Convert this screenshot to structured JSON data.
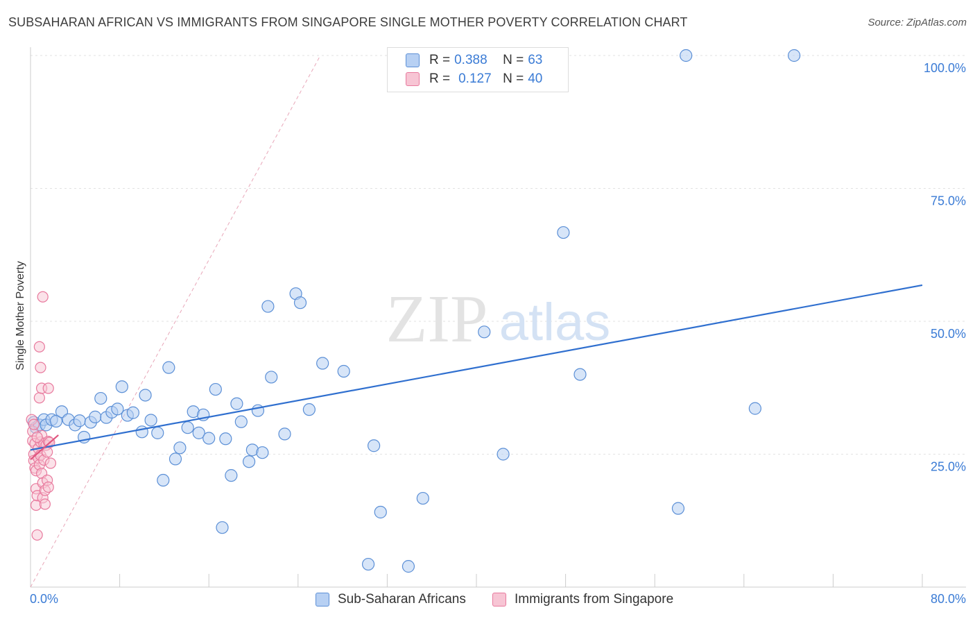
{
  "header": {
    "title": "SUBSAHARAN AFRICAN VS IMMIGRANTS FROM SINGAPORE SINGLE MOTHER POVERTY CORRELATION CHART",
    "source": "Source: ZipAtlas.com"
  },
  "watermark": {
    "zip": "ZIP",
    "atlas": "atlas"
  },
  "legend": {
    "r_label": "R =",
    "n_label": "N =",
    "series": [
      {
        "name": "Sub-Saharan Africans",
        "r": "0.388",
        "n": "63",
        "color": "#5b8fd6",
        "fill": "#b7d0f3"
      },
      {
        "name": "Immigrants from Singapore",
        "r": "0.127",
        "n": "40",
        "color": "#e8799d",
        "fill": "#f7c5d4"
      }
    ]
  },
  "chart_data": {
    "type": "scatter",
    "title": "SUBSAHARAN AFRICAN VS IMMIGRANTS FROM SINGAPORE SINGLE MOTHER POVERTY CORRELATION CHART",
    "xlabel": "",
    "ylabel": "Single Mother Poverty",
    "xlim": [
      0,
      80
    ],
    "ylim": [
      0,
      102
    ],
    "x_tick_labels": [
      "0.0%",
      "80.0%"
    ],
    "y_ticks": [
      25,
      50,
      75,
      100
    ],
    "y_tick_labels": [
      "25.0%",
      "50.0%",
      "75.0%",
      "100.0%"
    ],
    "grid": true,
    "series": [
      {
        "name": "Sub-Saharan Africans",
        "color": "#5b8fd6",
        "fill": "#b7d0f3",
        "points": [
          [
            0.3,
            31.0
          ],
          [
            0.5,
            30.0
          ],
          [
            0.8,
            30.5
          ],
          [
            1.2,
            31.5
          ],
          [
            1.4,
            30.5
          ],
          [
            1.9,
            31.5
          ],
          [
            2.3,
            31.2
          ],
          [
            2.8,
            33.0
          ],
          [
            3.4,
            31.5
          ],
          [
            4.0,
            30.5
          ],
          [
            4.4,
            31.3
          ],
          [
            4.8,
            28.2
          ],
          [
            5.4,
            31.0
          ],
          [
            5.8,
            32.0
          ],
          [
            6.3,
            35.5
          ],
          [
            6.8,
            31.9
          ],
          [
            7.3,
            32.9
          ],
          [
            7.8,
            33.5
          ],
          [
            8.2,
            37.7
          ],
          [
            8.7,
            32.3
          ],
          [
            9.2,
            32.8
          ],
          [
            10.0,
            29.2
          ],
          [
            10.3,
            36.1
          ],
          [
            10.8,
            31.4
          ],
          [
            11.4,
            29.0
          ],
          [
            11.9,
            20.1
          ],
          [
            12.4,
            41.3
          ],
          [
            13.0,
            24.1
          ],
          [
            13.4,
            26.2
          ],
          [
            14.1,
            30.0
          ],
          [
            14.6,
            33.0
          ],
          [
            15.1,
            29.0
          ],
          [
            15.5,
            32.4
          ],
          [
            16.0,
            28.0
          ],
          [
            16.6,
            37.2
          ],
          [
            17.2,
            11.2
          ],
          [
            17.5,
            27.9
          ],
          [
            18.0,
            21.0
          ],
          [
            18.5,
            34.5
          ],
          [
            18.9,
            31.1
          ],
          [
            19.6,
            23.6
          ],
          [
            19.9,
            25.8
          ],
          [
            20.4,
            33.2
          ],
          [
            20.8,
            25.3
          ],
          [
            21.3,
            52.8
          ],
          [
            21.6,
            39.5
          ],
          [
            22.8,
            28.8
          ],
          [
            23.8,
            55.2
          ],
          [
            24.2,
            53.5
          ],
          [
            25.0,
            33.4
          ],
          [
            26.2,
            42.1
          ],
          [
            28.1,
            40.6
          ],
          [
            30.3,
            4.3
          ],
          [
            30.8,
            26.6
          ],
          [
            31.4,
            14.1
          ],
          [
            33.9,
            3.9
          ],
          [
            35.2,
            16.7
          ],
          [
            40.7,
            48.0
          ],
          [
            42.4,
            25.0
          ],
          [
            47.8,
            66.7
          ],
          [
            49.3,
            40.0
          ],
          [
            58.1,
            14.8
          ],
          [
            58.8,
            100.0
          ],
          [
            65.0,
            33.6
          ],
          [
            68.5,
            100.0
          ]
        ],
        "trend": {
          "x": [
            0,
            80
          ],
          "y": [
            25.8,
            56.8
          ]
        }
      },
      {
        "name": "Immigrants from Singapore",
        "color": "#e8799d",
        "fill": "#f7c5d4",
        "points": [
          [
            0.1,
            31.5
          ],
          [
            0.2,
            29.3
          ],
          [
            0.2,
            27.5
          ],
          [
            0.3,
            25.0
          ],
          [
            0.3,
            23.8
          ],
          [
            0.4,
            22.4
          ],
          [
            0.4,
            27.0
          ],
          [
            0.5,
            21.9
          ],
          [
            0.5,
            18.5
          ],
          [
            0.5,
            15.4
          ],
          [
            0.6,
            17.2
          ],
          [
            0.6,
            9.8
          ],
          [
            0.7,
            26.1
          ],
          [
            0.7,
            24.3
          ],
          [
            0.8,
            23.0
          ],
          [
            0.8,
            45.2
          ],
          [
            0.8,
            35.6
          ],
          [
            0.9,
            41.3
          ],
          [
            0.9,
            27.3
          ],
          [
            0.9,
            24.8
          ],
          [
            1.0,
            37.4
          ],
          [
            1.0,
            28.5
          ],
          [
            1.0,
            21.4
          ],
          [
            1.1,
            19.6
          ],
          [
            1.1,
            16.8
          ],
          [
            1.1,
            54.6
          ],
          [
            1.2,
            27.0
          ],
          [
            1.2,
            23.9
          ],
          [
            1.3,
            18.2
          ],
          [
            1.3,
            15.6
          ],
          [
            1.4,
            26.7
          ],
          [
            1.5,
            25.4
          ],
          [
            1.5,
            20.1
          ],
          [
            1.6,
            27.4
          ],
          [
            1.6,
            37.4
          ],
          [
            1.6,
            18.8
          ],
          [
            1.7,
            27.2
          ],
          [
            1.8,
            23.3
          ],
          [
            0.3,
            30.6
          ],
          [
            0.6,
            28.2
          ]
        ],
        "trend": {
          "x": [
            0,
            2.5
          ],
          "y": [
            24.0,
            28.6
          ]
        }
      }
    ],
    "diagonal_reference": {
      "x": [
        0,
        26.0
      ],
      "y": [
        0,
        100
      ]
    }
  }
}
